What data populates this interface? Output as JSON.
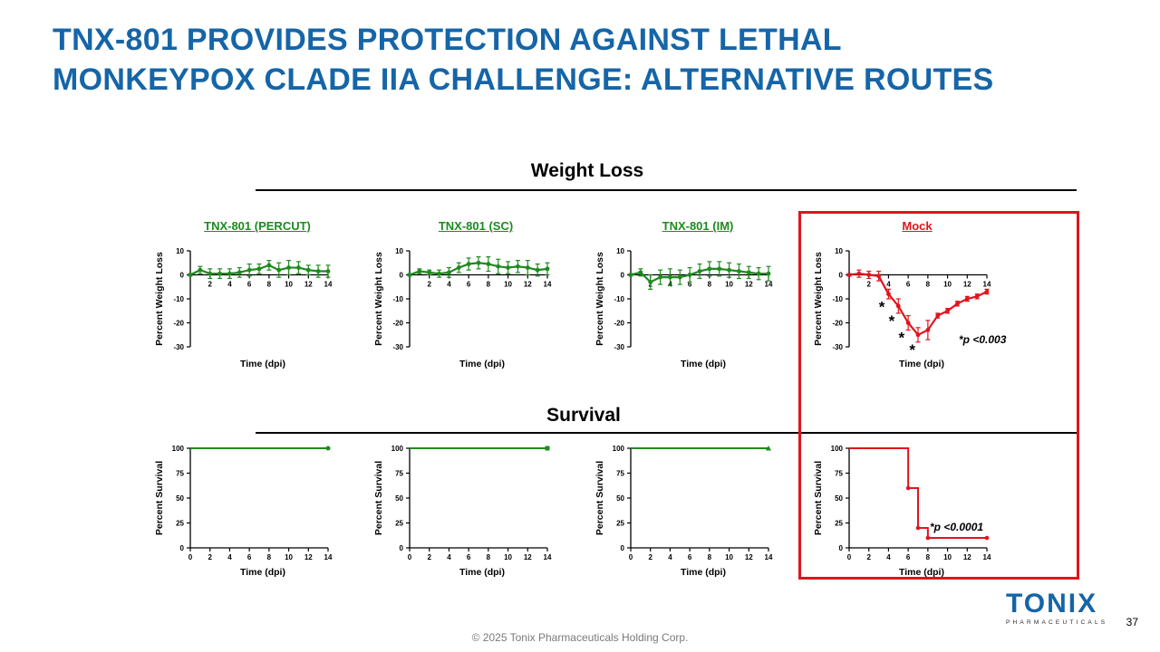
{
  "slide": {
    "title_line1": "TNX-801 PROVIDES PROTECTION AGAINST LETHAL",
    "title_line2": "MONKEYPOX CLADE IIA CHALLENGE: ALTERNATIVE ROUTES",
    "weight_loss_heading": "Weight Loss",
    "survival_heading": "Survival",
    "footer": "© 2025 Tonix Pharmaceuticals Holding Corp.",
    "page_number": "37",
    "logo_text": "TONIX",
    "logo_sub": "PHARMACEUTICALS"
  },
  "colors": {
    "title": "#1565a8",
    "green": "#1f8a1f",
    "red": "#e0141e",
    "box": "#e0141e"
  },
  "chart_data": [
    {
      "id": "wl-percut",
      "type": "line",
      "title": "TNX-801 (PERCUT)",
      "color": "#1f8a1f",
      "xlabel": "Time (dpi)",
      "ylabel": "Percent Weight Loss",
      "xlim": [
        0,
        14
      ],
      "ylim": [
        -30,
        10
      ],
      "xticks": [
        2,
        4,
        6,
        8,
        10,
        12,
        14
      ],
      "yticks": [
        10,
        0,
        -10,
        -20,
        -30
      ],
      "x": [
        0,
        1,
        2,
        3,
        4,
        5,
        6,
        7,
        8,
        9,
        10,
        11,
        12,
        13,
        14
      ],
      "y": [
        0,
        2,
        0.5,
        0.5,
        0.5,
        1,
        2,
        2.5,
        4,
        2,
        3,
        3,
        2,
        1.5,
        1.5
      ],
      "err": [
        0.5,
        1.5,
        2,
        2,
        2,
        2,
        2.5,
        2,
        2,
        3,
        3,
        2.5,
        2,
        2.5,
        2.5
      ]
    },
    {
      "id": "wl-sc",
      "type": "line",
      "title": "TNX-801 (SC)",
      "color": "#1f8a1f",
      "xlabel": "Time (dpi)",
      "ylabel": "Percent Weight Loss",
      "xlim": [
        0,
        14
      ],
      "ylim": [
        -30,
        10
      ],
      "xticks": [
        2,
        4,
        6,
        8,
        10,
        12,
        14
      ],
      "yticks": [
        10,
        0,
        -10,
        -20,
        -30
      ],
      "x": [
        0,
        1,
        2,
        3,
        4,
        5,
        6,
        7,
        8,
        9,
        10,
        11,
        12,
        13,
        14
      ],
      "y": [
        0,
        1.5,
        1,
        0.5,
        1,
        3,
        4.5,
        5,
        4.5,
        3.5,
        3,
        3.5,
        3,
        2,
        2.5
      ],
      "err": [
        0.5,
        1,
        1,
        1.5,
        2,
        2,
        2.5,
        2.5,
        3,
        3,
        2.5,
        2.5,
        3,
        2.5,
        2.5
      ]
    },
    {
      "id": "wl-im",
      "type": "line",
      "title": "TNX-801 (IM)",
      "color": "#1f8a1f",
      "xlabel": "Time (dpi)",
      "ylabel": "Percent Weight Loss",
      "xlim": [
        0,
        14
      ],
      "ylim": [
        -30,
        10
      ],
      "xticks": [
        2,
        4,
        6,
        8,
        10,
        12,
        14
      ],
      "yticks": [
        10,
        0,
        -10,
        -20,
        -30
      ],
      "x": [
        0,
        1,
        2,
        3,
        4,
        5,
        6,
        7,
        8,
        9,
        10,
        11,
        12,
        13,
        14
      ],
      "y": [
        0,
        1,
        -3,
        -1,
        -1,
        -1,
        0,
        1.5,
        2.5,
        2.5,
        2,
        1.5,
        1,
        0.5,
        0.5
      ],
      "err": [
        0.5,
        1.5,
        3,
        3,
        3.5,
        3,
        3,
        3,
        3,
        3,
        3,
        3,
        2.5,
        2.5,
        3
      ]
    },
    {
      "id": "wl-mock",
      "type": "line",
      "title": "Mock",
      "color": "#e0141e",
      "xlabel": "Time (dpi)",
      "ylabel": "Percent Weight Loss",
      "xlim": [
        0,
        14
      ],
      "ylim": [
        -30,
        10
      ],
      "xticks": [
        2,
        4,
        6,
        8,
        10,
        12,
        14
      ],
      "yticks": [
        10,
        0,
        -10,
        -20,
        -30
      ],
      "x": [
        0,
        1,
        2,
        3,
        4,
        5,
        6,
        7,
        8,
        9,
        10,
        11,
        12,
        13,
        14
      ],
      "y": [
        0,
        0.5,
        0,
        -0.5,
        -8,
        -13,
        -20,
        -25,
        -23,
        -17,
        -15,
        -12,
        -10,
        -9,
        -7
      ],
      "err": [
        0.5,
        1.5,
        1.5,
        2,
        2,
        3,
        3,
        3,
        4,
        1,
        1,
        1,
        1,
        1,
        1
      ],
      "significant_points": [
        4,
        5,
        6,
        7
      ],
      "annotation": "*p <0.003"
    },
    {
      "id": "sv-percut",
      "type": "line",
      "color": "#1f8a1f",
      "xlabel": "Time (dpi)",
      "ylabel": "Percent Survival",
      "xlim": [
        0,
        14
      ],
      "ylim": [
        0,
        100
      ],
      "xticks": [
        0,
        2,
        4,
        6,
        8,
        10,
        12,
        14
      ],
      "yticks": [
        0,
        25,
        50,
        75,
        100
      ],
      "x": [
        0,
        14
      ],
      "y": [
        100,
        100
      ],
      "end_marker": "circle"
    },
    {
      "id": "sv-sc",
      "type": "line",
      "color": "#1f8a1f",
      "xlabel": "Time (dpi)",
      "ylabel": "Percent Survival",
      "xlim": [
        0,
        14
      ],
      "ylim": [
        0,
        100
      ],
      "xticks": [
        0,
        2,
        4,
        6,
        8,
        10,
        12,
        14
      ],
      "yticks": [
        0,
        25,
        50,
        75,
        100
      ],
      "x": [
        0,
        14
      ],
      "y": [
        100,
        100
      ],
      "end_marker": "square"
    },
    {
      "id": "sv-im",
      "type": "line",
      "color": "#1f8a1f",
      "xlabel": "Time (dpi)",
      "ylabel": "Percent Survival",
      "xlim": [
        0,
        14
      ],
      "ylim": [
        0,
        100
      ],
      "xticks": [
        0,
        2,
        4,
        6,
        8,
        10,
        12,
        14
      ],
      "yticks": [
        0,
        25,
        50,
        75,
        100
      ],
      "x": [
        0,
        14
      ],
      "y": [
        100,
        100
      ],
      "end_marker": "triangle"
    },
    {
      "id": "sv-mock",
      "type": "line",
      "color": "#e0141e",
      "step": true,
      "xlabel": "Time (dpi)",
      "ylabel": "Percent Survival",
      "xlim": [
        0,
        14
      ],
      "ylim": [
        0,
        100
      ],
      "xticks": [
        0,
        2,
        4,
        6,
        8,
        10,
        12,
        14
      ],
      "yticks": [
        0,
        25,
        50,
        75,
        100
      ],
      "x": [
        0,
        6,
        7,
        8,
        14
      ],
      "y": [
        100,
        60,
        20,
        10,
        10
      ],
      "annotation": "*p <0.0001"
    }
  ]
}
